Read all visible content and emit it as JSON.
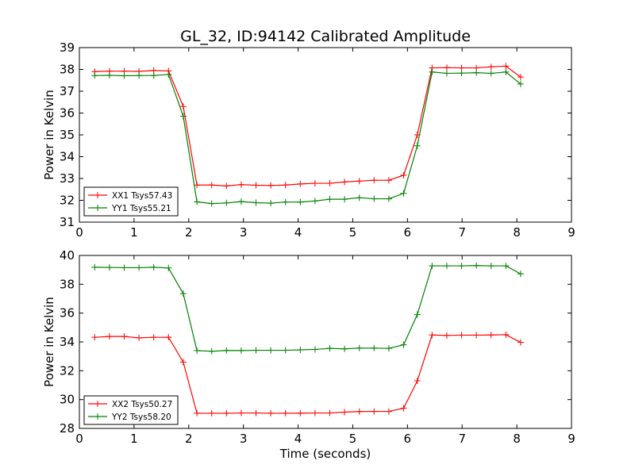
{
  "title": "GL_32, ID:94142 Calibrated Amplitude",
  "chart_data": [
    {
      "type": "line",
      "xlabel": "",
      "ylabel": "Power in Kelvin",
      "xlim": [
        0,
        9
      ],
      "ylim": [
        31,
        39
      ],
      "xticks": [
        0,
        1,
        2,
        3,
        4,
        5,
        6,
        7,
        8,
        9
      ],
      "yticks": [
        31,
        32,
        33,
        34,
        35,
        36,
        37,
        38,
        39
      ],
      "grid": false,
      "legend_position": "lower-left",
      "x": [
        0.28,
        0.55,
        0.82,
        1.09,
        1.36,
        1.63,
        1.9,
        2.15,
        2.42,
        2.69,
        2.96,
        3.23,
        3.5,
        3.77,
        4.04,
        4.31,
        4.58,
        4.85,
        5.12,
        5.39,
        5.66,
        5.93,
        6.18,
        6.45,
        6.72,
        6.99,
        7.26,
        7.53,
        7.8,
        8.07
      ],
      "series": [
        {
          "name": "XX1 Tsys57.43",
          "color": "#ff0000",
          "values": [
            37.9,
            37.92,
            37.92,
            37.91,
            37.95,
            37.93,
            36.3,
            32.7,
            32.7,
            32.66,
            32.72,
            32.69,
            32.68,
            32.7,
            32.75,
            32.78,
            32.78,
            32.84,
            32.88,
            32.92,
            32.92,
            33.15,
            35.0,
            38.07,
            38.08,
            38.07,
            38.07,
            38.12,
            38.15,
            37.65
          ]
        },
        {
          "name": "YY1 Tsys55.21",
          "color": "#008000",
          "values": [
            37.72,
            37.73,
            37.71,
            37.72,
            37.72,
            37.77,
            35.85,
            31.93,
            31.85,
            31.88,
            31.94,
            31.89,
            31.87,
            31.92,
            31.92,
            31.97,
            32.05,
            32.05,
            32.12,
            32.07,
            32.07,
            32.32,
            34.5,
            37.88,
            37.82,
            37.83,
            37.85,
            37.82,
            37.88,
            37.33
          ]
        }
      ]
    },
    {
      "type": "line",
      "xlabel": "Time (seconds)",
      "ylabel": "Power in Kelvin",
      "xlim": [
        0,
        9
      ],
      "ylim": [
        28,
        40
      ],
      "xticks": [
        0,
        1,
        2,
        3,
        4,
        5,
        6,
        7,
        8,
        9
      ],
      "yticks": [
        28,
        30,
        32,
        34,
        36,
        38,
        40
      ],
      "grid": false,
      "legend_position": "lower-left",
      "x": [
        0.28,
        0.55,
        0.82,
        1.09,
        1.36,
        1.63,
        1.9,
        2.15,
        2.42,
        2.69,
        2.96,
        3.23,
        3.5,
        3.77,
        4.04,
        4.31,
        4.58,
        4.85,
        5.12,
        5.39,
        5.66,
        5.93,
        6.18,
        6.45,
        6.72,
        6.99,
        7.26,
        7.53,
        7.8,
        8.07
      ],
      "series": [
        {
          "name": "XX2 Tsys50.27",
          "color": "#ff0000",
          "values": [
            34.32,
            34.38,
            34.38,
            34.28,
            34.32,
            34.32,
            32.6,
            29.05,
            29.05,
            29.05,
            29.07,
            29.07,
            29.05,
            29.05,
            29.06,
            29.07,
            29.07,
            29.13,
            29.17,
            29.18,
            29.18,
            29.4,
            31.3,
            34.48,
            34.45,
            34.47,
            34.47,
            34.48,
            34.5,
            33.97
          ]
        },
        {
          "name": "YY2 Tsys58.20",
          "color": "#008000",
          "values": [
            39.18,
            39.17,
            39.15,
            39.15,
            39.18,
            39.13,
            37.35,
            33.4,
            33.35,
            33.41,
            33.4,
            33.42,
            33.42,
            33.42,
            33.45,
            33.48,
            33.55,
            33.52,
            33.57,
            33.57,
            33.55,
            33.8,
            35.9,
            39.28,
            39.28,
            39.28,
            39.3,
            39.28,
            39.28,
            38.72
          ]
        }
      ]
    }
  ]
}
